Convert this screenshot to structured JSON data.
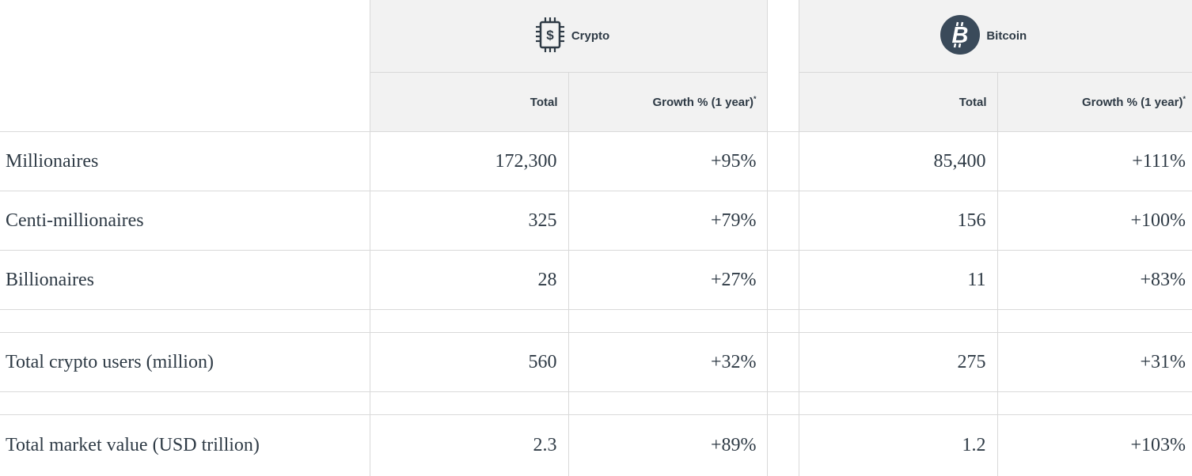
{
  "groups": {
    "crypto": {
      "label": "Crypto",
      "icon": "chip-dollar-icon"
    },
    "bitcoin": {
      "label": "Bitcoin",
      "icon": "bitcoin-icon"
    }
  },
  "columns": {
    "total": "Total",
    "growth": "Growth % (1 year)",
    "growth_marker": "*"
  },
  "rows": [
    {
      "label": "Millionaires",
      "crypto_total": "172,300",
      "crypto_growth": "+95%",
      "btc_total": "85,400",
      "btc_growth": "+111%"
    },
    {
      "label": "Centi-millionaires",
      "crypto_total": "325",
      "crypto_growth": "+79%",
      "btc_total": "156",
      "btc_growth": "+100%"
    },
    {
      "label": "Billionaires",
      "crypto_total": "28",
      "crypto_growth": "+27%",
      "btc_total": "11",
      "btc_growth": "+83%"
    },
    {
      "label": "Total crypto users (million)",
      "crypto_total": "560",
      "crypto_growth": "+32%",
      "btc_total": "275",
      "btc_growth": "+31%"
    },
    {
      "label": "Total market value (USD trillion)",
      "crypto_total": "2.3",
      "crypto_growth": "+89%",
      "btc_total": "1.2",
      "btc_growth": "+103%"
    }
  ],
  "colors": {
    "text": "#2e3a45",
    "header_bg": "#f2f2f2",
    "border": "#d9d9d9",
    "bitcoin_icon_bg": "#3a4a5a"
  }
}
